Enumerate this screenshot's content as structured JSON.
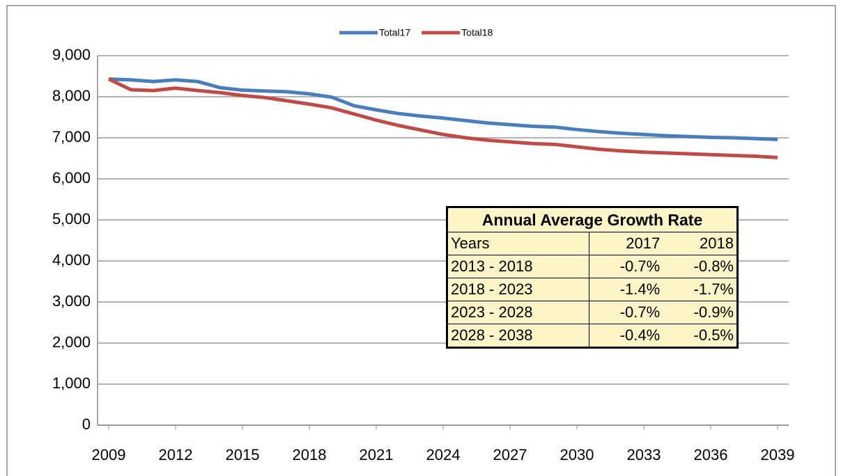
{
  "chart_data": {
    "type": "line",
    "x": [
      2009,
      2010,
      2011,
      2012,
      2013,
      2014,
      2015,
      2016,
      2017,
      2018,
      2019,
      2020,
      2021,
      2022,
      2023,
      2024,
      2025,
      2026,
      2027,
      2028,
      2029,
      2030,
      2031,
      2032,
      2033,
      2034,
      2035,
      2036,
      2037,
      2038,
      2039
    ],
    "xlim": [
      2008.5,
      2039.5
    ],
    "xticks": [
      2009,
      2012,
      2015,
      2018,
      2021,
      2024,
      2027,
      2030,
      2033,
      2036,
      2039
    ],
    "ylim": [
      0,
      9000
    ],
    "yticks": [
      0,
      {
        "value": 1000,
        "label": "1,000"
      },
      {
        "value": 2000,
        "label": "2,000"
      },
      {
        "value": 3000,
        "label": "3,000"
      },
      {
        "value": 4000,
        "label": "4,000"
      },
      {
        "value": 5000,
        "label": "5,000"
      },
      {
        "value": 6000,
        "label": "6,000"
      },
      {
        "value": 7000,
        "label": "7,000"
      },
      {
        "value": 8000,
        "label": "8,000"
      },
      {
        "value": 9000,
        "label": "9,000"
      }
    ],
    "grid": true,
    "legend": "top",
    "series": [
      {
        "name": "Total17",
        "color": "#4a7ebb",
        "values": [
          8430,
          8410,
          8370,
          8410,
          8370,
          8220,
          8160,
          8140,
          8120,
          8070,
          7990,
          7780,
          7680,
          7590,
          7530,
          7480,
          7420,
          7360,
          7320,
          7280,
          7260,
          7200,
          7150,
          7110,
          7080,
          7050,
          7030,
          7010,
          7000,
          6980,
          6960
        ]
      },
      {
        "name": "Total18",
        "color": "#be4b48",
        "values": [
          8430,
          8170,
          8150,
          8210,
          8150,
          8100,
          8030,
          7980,
          7900,
          7820,
          7730,
          7580,
          7430,
          7300,
          7190,
          7080,
          7000,
          6940,
          6900,
          6860,
          6840,
          6780,
          6720,
          6680,
          6650,
          6630,
          6610,
          6590,
          6570,
          6550,
          6520
        ]
      }
    ],
    "table": {
      "title": "Annual Average Growth Rate",
      "header": [
        "Years",
        "2017",
        "2018"
      ],
      "rows": [
        [
          "2013 - 2018",
          "-0.7%",
          "-0.8%"
        ],
        [
          "2018 - 2023",
          "-1.4%",
          "-1.7%"
        ],
        [
          "2023 - 2028",
          "-0.7%",
          "-0.9%"
        ],
        [
          "2028 - 2038",
          "-0.4%",
          "-0.5%"
        ]
      ]
    }
  }
}
